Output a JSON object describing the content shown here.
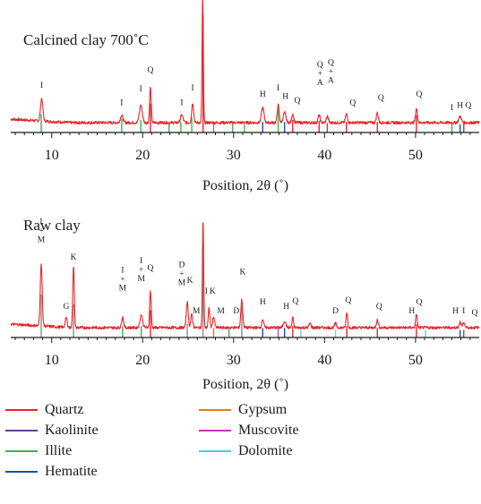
{
  "chart_data": [
    {
      "type": "line",
      "title": "Calcined clay 700˚C",
      "xlabel": "Position, 2θ (˚)",
      "xlim": [
        5.5,
        57
      ],
      "xticks": [
        10,
        20,
        30,
        40,
        50
      ],
      "baseline": 48,
      "peaks": [
        {
          "x": 8.9,
          "h": 18,
          "w": 0.18
        },
        {
          "x": 17.7,
          "h": 6,
          "w": 0.2
        },
        {
          "x": 19.8,
          "h": 14,
          "w": 0.22
        },
        {
          "x": 20.85,
          "h": 28,
          "w": 0.12
        },
        {
          "x": 24.3,
          "h": 6,
          "w": 0.2
        },
        {
          "x": 25.5,
          "h": 16,
          "w": 0.15
        },
        {
          "x": 26.6,
          "h": 100,
          "w": 0.1
        },
        {
          "x": 33.2,
          "h": 12,
          "w": 0.2
        },
        {
          "x": 34.9,
          "h": 14,
          "w": 0.15
        },
        {
          "x": 35.6,
          "h": 8,
          "w": 0.2
        },
        {
          "x": 36.5,
          "h": 7,
          "w": 0.15
        },
        {
          "x": 39.4,
          "h": 6,
          "w": 0.15
        },
        {
          "x": 40.3,
          "h": 5,
          "w": 0.15
        },
        {
          "x": 42.4,
          "h": 7,
          "w": 0.15
        },
        {
          "x": 45.8,
          "h": 8,
          "w": 0.15
        },
        {
          "x": 50.1,
          "h": 11,
          "w": 0.15
        },
        {
          "x": 54.9,
          "h": 5,
          "w": 0.2
        }
      ],
      "sticks": [
        {
          "x": 8.85,
          "h": 13,
          "color": "#39b54a"
        },
        {
          "x": 17.7,
          "h": 9,
          "color": "#39b54a"
        },
        {
          "x": 19.8,
          "h": 8,
          "color": "#39b54a"
        },
        {
          "x": 20.86,
          "h": 22,
          "color": "#e8262a"
        },
        {
          "x": 22.9,
          "h": 4,
          "color": "#39b54a"
        },
        {
          "x": 24.2,
          "h": 6,
          "color": "#39b54a"
        },
        {
          "x": 25.4,
          "h": 10,
          "color": "#39b54a"
        },
        {
          "x": 26.64,
          "h": 100,
          "color": "#e8262a"
        },
        {
          "x": 27.8,
          "h": 6,
          "color": "#39b54a"
        },
        {
          "x": 29.9,
          "h": 4,
          "color": "#39b54a"
        },
        {
          "x": 31.2,
          "h": 4,
          "color": "#39b54a"
        },
        {
          "x": 33.2,
          "h": 6,
          "color": "#1f4ea3"
        },
        {
          "x": 34.9,
          "h": 18,
          "color": "#39b54a"
        },
        {
          "x": 35.6,
          "h": 6,
          "color": "#1f4ea3"
        },
        {
          "x": 36.5,
          "h": 8,
          "color": "#e8262a"
        },
        {
          "x": 39.4,
          "h": 7,
          "color": "#e8262a"
        },
        {
          "x": 40.3,
          "h": 5,
          "color": "#e8262a"
        },
        {
          "x": 42.4,
          "h": 6,
          "color": "#e8262a"
        },
        {
          "x": 45.8,
          "h": 6,
          "color": "#e8262a"
        },
        {
          "x": 50.1,
          "h": 12,
          "color": "#e8262a"
        },
        {
          "x": 54.0,
          "h": 4,
          "color": "#39b54a"
        },
        {
          "x": 54.9,
          "h": 4,
          "color": "#1f4ea3"
        },
        {
          "x": 55.3,
          "h": 5,
          "color": "#e8262a"
        }
      ],
      "labels": [
        {
          "x": 8.9,
          "text": "I",
          "y": 30
        },
        {
          "x": 17.7,
          "text": "I",
          "y": 16
        },
        {
          "x": 19.8,
          "text": "I",
          "y": 27
        },
        {
          "x": 20.85,
          "text": "Q",
          "y": 42
        },
        {
          "x": 24.3,
          "text": "I",
          "y": 16
        },
        {
          "x": 25.5,
          "text": "I",
          "y": 28
        },
        {
          "x": 33.2,
          "text": "H",
          "y": 23
        },
        {
          "x": 34.9,
          "text": "I",
          "y": 28
        },
        {
          "x": 35.7,
          "text": "H",
          "y": 21
        },
        {
          "x": 37.0,
          "text": "Q",
          "y": 18
        },
        {
          "x": 39.5,
          "text": "Q\n+\nA",
          "y": 32
        },
        {
          "x": 40.7,
          "text": "Q\n+\nA",
          "y": 34
        },
        {
          "x": 43.1,
          "text": "Q",
          "y": 16
        },
        {
          "x": 46.2,
          "text": "Q",
          "y": 20
        },
        {
          "x": 50.4,
          "text": "Q",
          "y": 23
        },
        {
          "x": 54.0,
          "text": "I",
          "y": 12
        },
        {
          "x": 54.9,
          "text": "H",
          "y": 14
        },
        {
          "x": 55.8,
          "text": "Q",
          "y": 14
        }
      ]
    },
    {
      "type": "line",
      "title": "Raw clay",
      "xlabel": "Position, 2θ (˚)",
      "xlim": [
        5.5,
        57
      ],
      "xticks": [
        10,
        20,
        30,
        40,
        50
      ],
      "baseline": 48,
      "peaks": [
        {
          "x": 8.85,
          "h": 58,
          "w": 0.15
        },
        {
          "x": 11.6,
          "h": 9,
          "w": 0.15
        },
        {
          "x": 12.4,
          "h": 58,
          "w": 0.12
        },
        {
          "x": 17.8,
          "h": 10,
          "w": 0.15
        },
        {
          "x": 19.85,
          "h": 12,
          "w": 0.2
        },
        {
          "x": 20.85,
          "h": 34,
          "w": 0.12
        },
        {
          "x": 24.9,
          "h": 24,
          "w": 0.15
        },
        {
          "x": 25.4,
          "h": 12,
          "w": 0.15
        },
        {
          "x": 26.64,
          "h": 100,
          "w": 0.1
        },
        {
          "x": 27.3,
          "h": 18,
          "w": 0.12
        },
        {
          "x": 27.8,
          "h": 10,
          "w": 0.15
        },
        {
          "x": 30.9,
          "h": 26,
          "w": 0.15
        },
        {
          "x": 33.2,
          "h": 8,
          "w": 0.15
        },
        {
          "x": 35.6,
          "h": 6,
          "w": 0.2
        },
        {
          "x": 36.5,
          "h": 9,
          "w": 0.12
        },
        {
          "x": 38.4,
          "h": 4,
          "w": 0.15
        },
        {
          "x": 41.2,
          "h": 4,
          "w": 0.15
        },
        {
          "x": 42.45,
          "h": 14,
          "w": 0.12
        },
        {
          "x": 45.8,
          "h": 7,
          "w": 0.15
        },
        {
          "x": 50.1,
          "h": 13,
          "w": 0.12
        },
        {
          "x": 54.9,
          "h": 5,
          "w": 0.15
        },
        {
          "x": 55.3,
          "h": 5,
          "w": 0.15
        }
      ],
      "sticks": [
        {
          "x": 8.85,
          "h": 40,
          "color": "#8c8c8c"
        },
        {
          "x": 12.4,
          "h": 30,
          "color": "#8c8c8c"
        },
        {
          "x": 17.8,
          "h": 8,
          "color": "#39b54a"
        },
        {
          "x": 19.85,
          "h": 8,
          "color": "#39b54a"
        },
        {
          "x": 20.86,
          "h": 24,
          "color": "#e8262a"
        },
        {
          "x": 24.9,
          "h": 10,
          "color": "#8c8c8c"
        },
        {
          "x": 26.64,
          "h": 100,
          "color": "#8c8c8c"
        },
        {
          "x": 27.8,
          "h": 6,
          "color": "#d97c1e"
        },
        {
          "x": 29.5,
          "h": 5,
          "color": "#39b54a"
        },
        {
          "x": 30.9,
          "h": 28,
          "color": "#8c8c8c"
        },
        {
          "x": 33.2,
          "h": 6,
          "color": "#1f4ea3"
        },
        {
          "x": 34.9,
          "h": 6,
          "color": "#9b59b6"
        },
        {
          "x": 35.6,
          "h": 6,
          "color": "#1f4ea3"
        },
        {
          "x": 36.5,
          "h": 8,
          "color": "#e8262a"
        },
        {
          "x": 37.4,
          "h": 4,
          "color": "#6bcfe0"
        },
        {
          "x": 41.2,
          "h": 4,
          "color": "#6bcfe0"
        },
        {
          "x": 42.45,
          "h": 8,
          "color": "#e8262a"
        },
        {
          "x": 45.8,
          "h": 6,
          "color": "#e8262a"
        },
        {
          "x": 50.1,
          "h": 10,
          "color": "#e8262a"
        },
        {
          "x": 51.1,
          "h": 4,
          "color": "#6bcfe0"
        },
        {
          "x": 54.9,
          "h": 4,
          "color": "#1f4ea3"
        },
        {
          "x": 55.3,
          "h": 4,
          "color": "#e8262a"
        }
      ],
      "labels": [
        {
          "x": 8.85,
          "text": "I\n+\nM",
          "y": 82
        },
        {
          "x": 11.6,
          "text": "G",
          "y": 20
        },
        {
          "x": 12.4,
          "text": "K",
          "y": 66
        },
        {
          "x": 17.8,
          "text": "I\n+\nM",
          "y": 37
        },
        {
          "x": 19.85,
          "text": "I\n+\nM",
          "y": 46
        },
        {
          "x": 20.85,
          "text": "Q",
          "y": 56
        },
        {
          "x": 24.3,
          "text": "D\n+\nM",
          "y": 42
        },
        {
          "x": 25.2,
          "text": "K",
          "y": 44
        },
        {
          "x": 25.9,
          "text": "M",
          "y": 16
        },
        {
          "x": 27.0,
          "text": "I",
          "y": 34
        },
        {
          "x": 27.7,
          "text": "K",
          "y": 34
        },
        {
          "x": 28.6,
          "text": "M",
          "y": 16
        },
        {
          "x": 30.3,
          "text": "D",
          "y": 16
        },
        {
          "x": 31.0,
          "text": "K",
          "y": 52
        },
        {
          "x": 33.2,
          "text": "H",
          "y": 24
        },
        {
          "x": 35.8,
          "text": "H",
          "y": 20
        },
        {
          "x": 36.8,
          "text": "Q",
          "y": 25
        },
        {
          "x": 41.2,
          "text": "D",
          "y": 16
        },
        {
          "x": 42.6,
          "text": "Q",
          "y": 26
        },
        {
          "x": 46.0,
          "text": "Q",
          "y": 20
        },
        {
          "x": 49.6,
          "text": "H",
          "y": 16
        },
        {
          "x": 50.4,
          "text": "Q",
          "y": 24
        },
        {
          "x": 54.4,
          "text": "H",
          "y": 16
        },
        {
          "x": 55.3,
          "text": "I",
          "y": 16
        },
        {
          "x": 56.5,
          "text": "Q",
          "y": 14
        }
      ]
    }
  ],
  "legend": [
    {
      "label": "Quartz",
      "color": "#e8262a"
    },
    {
      "label": "Kaolinite",
      "color": "#6a3d8f"
    },
    {
      "label": "Illite",
      "color": "#39b54a"
    },
    {
      "label": "Hematite",
      "color": "#1f4ea3"
    },
    {
      "label": "Gypsum",
      "color": "#e07b1a"
    },
    {
      "label": "Muscovite",
      "color": "#b83ab8"
    },
    {
      "label": "Dolomite",
      "color": "#58c8dc"
    }
  ]
}
